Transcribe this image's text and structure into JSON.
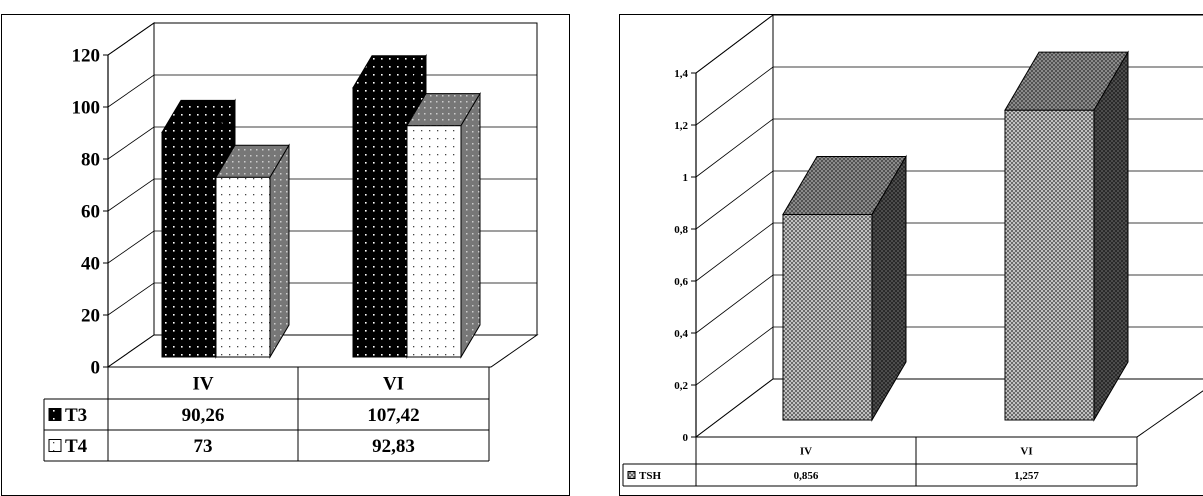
{
  "chart_data": [
    {
      "type": "bar",
      "categories": [
        "IV",
        "VI"
      ],
      "series": [
        {
          "name": "T3",
          "values": [
            90.26,
            107.42
          ],
          "labels": [
            "90,26",
            "107,42"
          ]
        },
        {
          "name": "T4",
          "values": [
            73,
            92.83
          ],
          "labels": [
            "73",
            "92,83"
          ]
        }
      ],
      "ylim": [
        0,
        120
      ],
      "yticks": [
        "0",
        "20",
        "40",
        "60",
        "80",
        "100",
        "120"
      ],
      "grid": true,
      "legend": "data-table"
    },
    {
      "type": "bar",
      "categories": [
        "IV",
        "VI"
      ],
      "series": [
        {
          "name": "TSH",
          "values": [
            0.856,
            1.257
          ],
          "labels": [
            "0,856",
            "1,257"
          ]
        }
      ],
      "ylim": [
        0,
        1.4
      ],
      "yticks": [
        "0",
        "0,2",
        "0,4",
        "0,6",
        "0,8",
        "1",
        "1,2",
        "1,4"
      ],
      "grid": true,
      "legend": "data-table"
    }
  ]
}
